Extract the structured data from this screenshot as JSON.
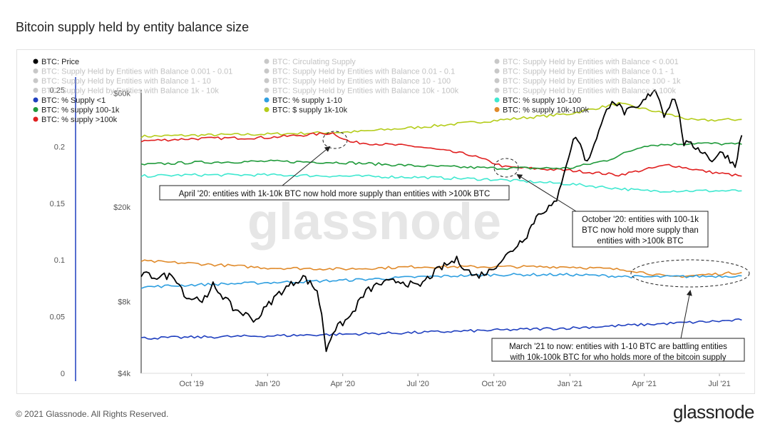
{
  "title": "Bitcoin supply held by entity balance size",
  "footer": {
    "copyright": "© 2021 Glassnode. All Rights Reserved.",
    "logo": "glassnode"
  },
  "watermark": "glassnode",
  "colors": {
    "price": "#000000",
    "circulating": "#bbbbbb",
    "lt1": "#1f3fbf",
    "s1_10": "#2f9fe0",
    "s10_100": "#3fe8d0",
    "s100_1k": "#1f9a3a",
    "s1k_10k": "#b4cc1a",
    "s10k_100k": "#e08a2a",
    "gt100k": "#e01f1f"
  },
  "legend": [
    {
      "label": "BTC: Price",
      "color": "#000000",
      "enabled": true
    },
    {
      "label": "BTC: Circulating Supply",
      "color": "#bbbbbb",
      "enabled": false
    },
    {
      "label": "BTC: Supply Held by Entities with Balance < 0.001",
      "color": "#bbbbbb",
      "enabled": false
    },
    {
      "label": "BTC: Supply Held by Entities with Balance 0.001 - 0.01",
      "color": "#bbbbbb",
      "enabled": false
    },
    {
      "label": "BTC: Supply Held by Entities with Balance 0.01 - 0.1",
      "color": "#bbbbbb",
      "enabled": false
    },
    {
      "label": "BTC: Supply Held by Entities with Balance 0.1 - 1",
      "color": "#bbbbbb",
      "enabled": false
    },
    {
      "label": "BTC: Supply Held by Entities with Balance 1 - 10",
      "color": "#bbbbbb",
      "enabled": false
    },
    {
      "label": "BTC: Supply Held by Entities with Balance 10 - 100",
      "color": "#bbbbbb",
      "enabled": false
    },
    {
      "label": "BTC: Supply Held by Entities with Balance 100 - 1k",
      "color": "#bbbbbb",
      "enabled": false
    },
    {
      "label": "BTC: Supply Held by Entities with Balance 1k - 10k",
      "color": "#bbbbbb",
      "enabled": false
    },
    {
      "label": "BTC: Supply Held by Entities with Balance 10k - 100k",
      "color": "#bbbbbb",
      "enabled": false
    },
    {
      "label": "BTC: Supply Held by Entities with Balance > 100k",
      "color": "#bbbbbb",
      "enabled": false
    },
    {
      "label": "BTC: % Supply <1",
      "color": "#1f3fbf",
      "enabled": true
    },
    {
      "label": "BTC: % supply 1-10",
      "color": "#2f9fe0",
      "enabled": true
    },
    {
      "label": "BTC: % supply 10-100",
      "color": "#3fe8d0",
      "enabled": true
    },
    {
      "label": "BTC: % supply 100-1k",
      "color": "#1f9a3a",
      "enabled": true
    },
    {
      "label": "BTC: $ supply 1k-10k",
      "color": "#b4cc1a",
      "enabled": true
    },
    {
      "label": "BTC: % supply 10k-100k",
      "color": "#e08a2a",
      "enabled": true
    },
    {
      "label": "BTC: % supply >100k",
      "color": "#e01f1f",
      "enabled": true
    }
  ],
  "chart_data": {
    "type": "line",
    "x_range": [
      "2019-08-01",
      "2021-08-01"
    ],
    "x_ticks": [
      {
        "date": "2019-10-01",
        "label": "Oct '19"
      },
      {
        "date": "2020-01-01",
        "label": "Jan '20"
      },
      {
        "date": "2020-04-01",
        "label": "Apr '20"
      },
      {
        "date": "2020-07-01",
        "label": "Jul '20"
      },
      {
        "date": "2020-10-01",
        "label": "Oct '20"
      },
      {
        "date": "2021-01-01",
        "label": "Jan '21"
      },
      {
        "date": "2021-04-01",
        "label": "Apr '21"
      },
      {
        "date": "2021-07-01",
        "label": "Jul '21"
      }
    ],
    "y_left": {
      "range": [
        0,
        0.25
      ],
      "ticks": [
        0,
        0.05,
        0.1,
        0.15,
        0.2,
        0.25
      ],
      "tick_labels": [
        "0",
        "0.05",
        "0.1",
        "0.15",
        "0.2",
        "0.25"
      ]
    },
    "y_right": {
      "scale": "log",
      "range": [
        4000,
        62000
      ],
      "ticks": [
        4000,
        8000,
        20000,
        60000
      ],
      "tick_labels": [
        "$4k",
        "$8k",
        "$20k",
        "$60k"
      ]
    },
    "series": [
      {
        "name": "BTC: % supply 1k-10k",
        "color": "#b4cc1a",
        "axis": "left",
        "dates": [
          "2019-08-01",
          "2019-10-01",
          "2020-01-01",
          "2020-04-15",
          "2020-07-01",
          "2020-10-01",
          "2021-01-01",
          "2021-03-01",
          "2021-04-15",
          "2021-06-01",
          "2021-07-28"
        ],
        "values": [
          0.209,
          0.21,
          0.211,
          0.213,
          0.217,
          0.223,
          0.229,
          0.238,
          0.231,
          0.223,
          0.224
        ]
      },
      {
        "name": "BTC: % supply >100k",
        "color": "#e01f1f",
        "axis": "left",
        "dates": [
          "2019-08-01",
          "2019-10-01",
          "2020-01-01",
          "2020-03-20",
          "2020-04-10",
          "2020-07-01",
          "2020-09-01",
          "2020-10-15",
          "2021-01-01",
          "2021-03-01",
          "2021-05-01",
          "2021-06-15",
          "2021-07-28"
        ],
        "values": [
          0.205,
          0.207,
          0.208,
          0.212,
          0.204,
          0.2,
          0.193,
          0.182,
          0.179,
          0.175,
          0.184,
          0.178,
          0.174
        ]
      },
      {
        "name": "BTC: % supply 100-1k",
        "color": "#1f9a3a",
        "axis": "left",
        "dates": [
          "2019-08-01",
          "2019-10-01",
          "2020-01-01",
          "2020-04-01",
          "2020-07-01",
          "2020-10-01",
          "2021-01-01",
          "2021-02-15",
          "2021-04-01",
          "2021-06-01",
          "2021-07-28"
        ],
        "values": [
          0.184,
          0.186,
          0.187,
          0.186,
          0.183,
          0.181,
          0.181,
          0.188,
          0.201,
          0.203,
          0.202
        ]
      },
      {
        "name": "BTC: % supply 10-100",
        "color": "#3fe8d0",
        "axis": "left",
        "dates": [
          "2019-08-01",
          "2019-10-01",
          "2020-01-01",
          "2020-04-01",
          "2020-07-01",
          "2020-10-01",
          "2021-01-01",
          "2021-04-01",
          "2021-07-28"
        ],
        "values": [
          0.174,
          0.175,
          0.175,
          0.174,
          0.173,
          0.171,
          0.167,
          0.161,
          0.161
        ]
      },
      {
        "name": "BTC: % supply 10k-100k",
        "color": "#e08a2a",
        "axis": "left",
        "dates": [
          "2019-08-01",
          "2019-10-01",
          "2020-01-01",
          "2020-04-01",
          "2020-07-01",
          "2020-10-01",
          "2021-01-01",
          "2021-03-15",
          "2021-05-01",
          "2021-07-28"
        ],
        "values": [
          0.099,
          0.097,
          0.093,
          0.092,
          0.094,
          0.094,
          0.094,
          0.091,
          0.085,
          0.089
        ]
      },
      {
        "name": "BTC: % supply 1-10",
        "color": "#2f9fe0",
        "axis": "left",
        "dates": [
          "2019-08-01",
          "2019-10-01",
          "2020-01-01",
          "2020-04-01",
          "2020-07-01",
          "2020-10-01",
          "2021-01-01",
          "2021-04-01",
          "2021-07-28"
        ],
        "values": [
          0.076,
          0.078,
          0.08,
          0.082,
          0.085,
          0.087,
          0.087,
          0.085,
          0.086
        ]
      },
      {
        "name": "BTC: % Supply <1",
        "color": "#1f3fbf",
        "axis": "left",
        "dates": [
          "2019-08-01",
          "2020-01-01",
          "2020-07-01",
          "2021-01-01",
          "2021-04-01",
          "2021-07-28"
        ],
        "values": [
          0.031,
          0.033,
          0.036,
          0.04,
          0.043,
          0.047
        ]
      },
      {
        "name": "BTC: Price",
        "color": "#000000",
        "axis": "right",
        "dates": [
          "2019-08-01",
          "2019-08-20",
          "2019-09-10",
          "2019-09-25",
          "2019-10-20",
          "2019-10-27",
          "2019-11-20",
          "2019-12-18",
          "2020-01-15",
          "2020-02-13",
          "2020-03-01",
          "2020-03-12",
          "2020-03-20",
          "2020-04-10",
          "2020-04-29",
          "2020-05-15",
          "2020-06-10",
          "2020-07-01",
          "2020-07-27",
          "2020-08-17",
          "2020-09-07",
          "2020-09-25",
          "2020-10-21",
          "2020-11-10",
          "2020-11-24",
          "2020-12-16",
          "2021-01-08",
          "2021-01-22",
          "2021-02-08",
          "2021-02-21",
          "2021-03-08",
          "2021-03-25",
          "2021-04-14",
          "2021-04-25",
          "2021-05-08",
          "2021-05-19",
          "2021-06-05",
          "2021-06-22",
          "2021-07-05",
          "2021-07-20",
          "2021-07-28"
        ],
        "values": [
          10400,
          10200,
          10300,
          8300,
          8200,
          9400,
          7500,
          6700,
          8700,
          10200,
          8900,
          5000,
          6000,
          6900,
          8800,
          9500,
          9800,
          9200,
          11000,
          12000,
          10200,
          10700,
          12900,
          15300,
          18800,
          20800,
          40000,
          30500,
          44000,
          57000,
          50000,
          52000,
          63000,
          49000,
          58000,
          37000,
          35500,
          31500,
          34000,
          29800,
          40000
        ]
      }
    ],
    "annotations": [
      {
        "text": "April '20: entities with 1k-10k BTC now hold more supply than entities with >100k BTC"
      },
      {
        "lines": [
          "October '20: entities with 100-1k",
          "BTC now hold more supply than",
          "entities with >100k BTC"
        ]
      },
      {
        "lines": [
          "March '21 to now: entities with 1-10 BTC are battling entities",
          "with 10k-100k BTC for who holds more of the bitcoin supply"
        ]
      }
    ]
  }
}
